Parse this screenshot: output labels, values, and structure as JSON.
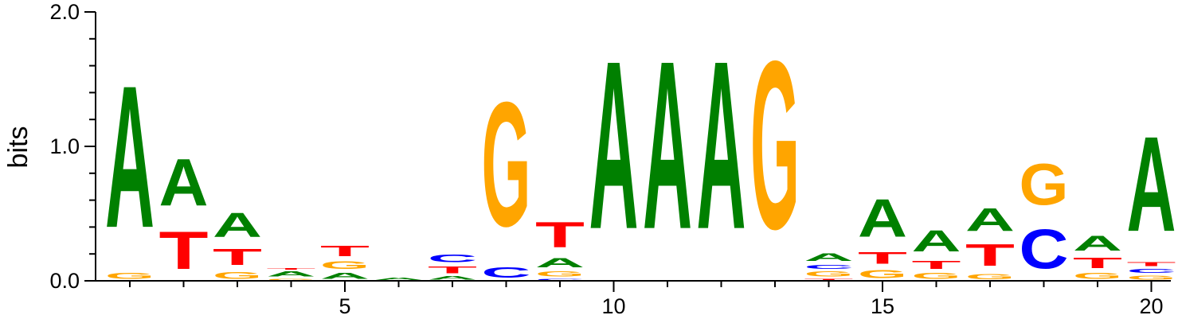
{
  "chart_data": {
    "type": "sequence-logo",
    "title": "",
    "ylabel": "bits",
    "xlabel": "",
    "ylim": [
      0,
      2
    ],
    "y_ticks": [
      "0.0",
      "1.0",
      "2.0"
    ],
    "x_tick_labels": [
      {
        "pos": 5,
        "label": "5"
      },
      {
        "pos": 10,
        "label": "10"
      },
      {
        "pos": 15,
        "label": "15"
      },
      {
        "pos": 20,
        "label": "20"
      }
    ],
    "colors": {
      "A": "#008000",
      "C": "#0000ff",
      "G": "#ffa500",
      "T": "#ff0000"
    },
    "positions": [
      {
        "pos": 1,
        "letters": [
          {
            "b": "G",
            "h": 0.07
          },
          {
            "b": "A",
            "h": 1.69
          }
        ]
      },
      {
        "pos": 2,
        "letters": [
          {
            "b": "T",
            "h": 0.45
          },
          {
            "b": "A",
            "h": 0.56
          }
        ]
      },
      {
        "pos": 3,
        "letters": [
          {
            "b": "G",
            "h": 0.08
          },
          {
            "b": "T",
            "h": 0.19
          },
          {
            "b": "A",
            "h": 0.29
          }
        ]
      },
      {
        "pos": 4,
        "letters": [
          {
            "b": "G",
            "h": 0.02
          },
          {
            "b": "A",
            "h": 0.06
          },
          {
            "b": "T",
            "h": 0.02
          }
        ]
      },
      {
        "pos": 5,
        "letters": [
          {
            "b": "A",
            "h": 0.07
          },
          {
            "b": "G",
            "h": 0.09
          },
          {
            "b": "T",
            "h": 0.12
          }
        ]
      },
      {
        "pos": 6,
        "letters": [
          {
            "b": "A",
            "h": 0.03
          }
        ]
      },
      {
        "pos": 7,
        "letters": [
          {
            "b": "A",
            "h": 0.04
          },
          {
            "b": "T",
            "h": 0.08
          },
          {
            "b": "C",
            "h": 0.09
          }
        ]
      },
      {
        "pos": 8,
        "letters": [
          {
            "b": "C",
            "h": 0.12
          },
          {
            "b": "G",
            "h": 1.48
          }
        ]
      },
      {
        "pos": 9,
        "letters": [
          {
            "b": "C",
            "h": 0.02
          },
          {
            "b": "G",
            "h": 0.06
          },
          {
            "b": "A",
            "h": 0.11
          },
          {
            "b": "T",
            "h": 0.3
          }
        ]
      },
      {
        "pos": 10,
        "letters": [
          {
            "b": "A",
            "h": 2.0
          }
        ]
      },
      {
        "pos": 11,
        "letters": [
          {
            "b": "A",
            "h": 2.0
          }
        ]
      },
      {
        "pos": 12,
        "letters": [
          {
            "b": "A",
            "h": 2.0
          }
        ]
      },
      {
        "pos": 13,
        "letters": [
          {
            "b": "G",
            "h": 2.0
          }
        ]
      },
      {
        "pos": 14,
        "letters": [
          {
            "b": "T",
            "h": 0.02
          },
          {
            "b": "G",
            "h": 0.06
          },
          {
            "b": "C",
            "h": 0.05
          },
          {
            "b": "A",
            "h": 0.09
          }
        ]
      },
      {
        "pos": 15,
        "letters": [
          {
            "b": "G",
            "h": 0.1
          },
          {
            "b": "T",
            "h": 0.14
          },
          {
            "b": "A",
            "h": 0.45
          }
        ]
      },
      {
        "pos": 16,
        "letters": [
          {
            "b": "G",
            "h": 0.07
          },
          {
            "b": "T",
            "h": 0.1
          },
          {
            "b": "A",
            "h": 0.25
          }
        ]
      },
      {
        "pos": 17,
        "letters": [
          {
            "b": "G",
            "h": 0.06
          },
          {
            "b": "T",
            "h": 0.26
          },
          {
            "b": "A",
            "h": 0.27
          }
        ]
      },
      {
        "pos": 18,
        "letters": [
          {
            "b": "C",
            "h": 0.47
          },
          {
            "b": "G",
            "h": 0.49
          }
        ]
      },
      {
        "pos": 19,
        "letters": [
          {
            "b": "G",
            "h": 0.07
          },
          {
            "b": "T",
            "h": 0.12
          },
          {
            "b": "A",
            "h": 0.18
          }
        ]
      },
      {
        "pos": 20,
        "letters": [
          {
            "b": "G",
            "h": 0.05
          },
          {
            "b": "C",
            "h": 0.05
          },
          {
            "b": "T",
            "h": 0.05
          },
          {
            "b": "A",
            "h": 1.13
          }
        ]
      }
    ]
  }
}
